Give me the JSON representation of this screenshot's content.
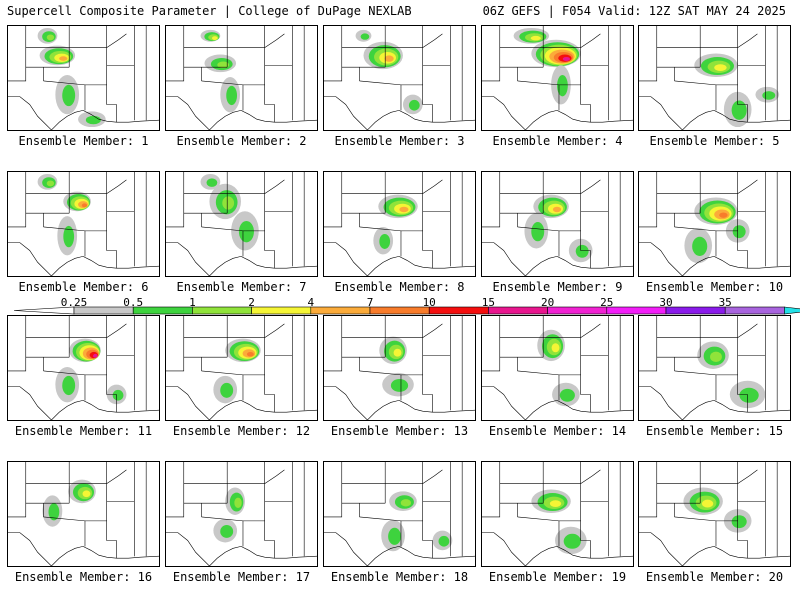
{
  "header": {
    "left": "Supercell Composite Parameter | College of DuPage NEXLAB",
    "right": "06Z GEFS | F054 Valid: 12Z SAT MAY 24 2025"
  },
  "colorbar": {
    "labels": [
      "0.25",
      "0.5",
      "1",
      "2",
      "4",
      "7",
      "10",
      "15",
      "20",
      "25",
      "30",
      "35"
    ],
    "colors": [
      "#c8c8c8",
      "#3ed33e",
      "#90e33a",
      "#f5f535",
      "#fbab3a",
      "#f87c2b",
      "#f40e0e",
      "#e8168e",
      "#f022d2",
      "#f21ef8",
      "#8a1bea",
      "#a864de",
      "#24e1e8"
    ]
  },
  "members": [
    {
      "label": "Ensemble Member: 1"
    },
    {
      "label": "Ensemble Member: 2"
    },
    {
      "label": "Ensemble Member: 3"
    },
    {
      "label": "Ensemble Member: 4"
    },
    {
      "label": "Ensemble Member: 5"
    },
    {
      "label": "Ensemble Member: 6"
    },
    {
      "label": "Ensemble Member: 7"
    },
    {
      "label": "Ensemble Member: 8"
    },
    {
      "label": "Ensemble Member: 9"
    },
    {
      "label": "Ensemble Member: 10"
    },
    {
      "label": "Ensemble Member: 11"
    },
    {
      "label": "Ensemble Member: 12"
    },
    {
      "label": "Ensemble Member: 13"
    },
    {
      "label": "Ensemble Member: 14"
    },
    {
      "label": "Ensemble Member: 15"
    },
    {
      "label": "Ensemble Member: 16"
    },
    {
      "label": "Ensemble Member: 17"
    },
    {
      "label": "Ensemble Member: 18"
    },
    {
      "label": "Ensemble Member: 19"
    },
    {
      "label": "Ensemble Member: 20"
    }
  ]
}
